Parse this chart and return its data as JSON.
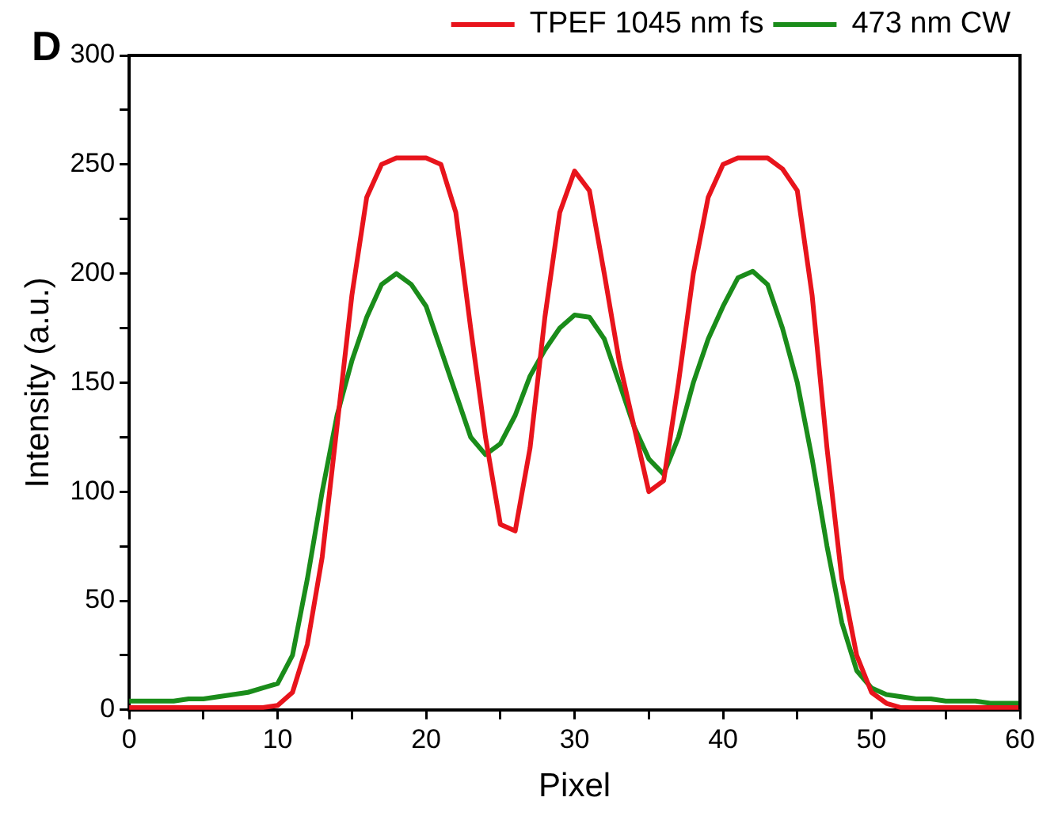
{
  "chart_data": {
    "type": "line",
    "xlabel": "Pixel",
    "ylabel": "Intensity (a.u.)",
    "annotations": [
      "D"
    ],
    "x": [
      0,
      1,
      2,
      3,
      4,
      5,
      6,
      7,
      8,
      9,
      10,
      11,
      12,
      13,
      14,
      15,
      16,
      17,
      18,
      19,
      20,
      21,
      22,
      23,
      24,
      25,
      26,
      27,
      28,
      29,
      30,
      31,
      32,
      33,
      34,
      35,
      36,
      37,
      38,
      39,
      40,
      41,
      42,
      43,
      44,
      45,
      46,
      47,
      48,
      49,
      50,
      51,
      52,
      53,
      54,
      55,
      56,
      57,
      58,
      59,
      60
    ],
    "series": [
      {
        "name": "TPEF 1045 nm fs",
        "color": "#e8141c",
        "values": [
          1,
          1,
          1,
          1,
          1,
          1,
          1,
          1,
          1,
          1,
          2,
          8,
          30,
          70,
          130,
          190,
          235,
          250,
          253,
          253,
          253,
          250,
          228,
          175,
          125,
          85,
          82,
          120,
          180,
          228,
          247,
          238,
          200,
          160,
          130,
          100,
          105,
          150,
          200,
          235,
          250,
          253,
          253,
          253,
          248,
          238,
          190,
          120,
          60,
          25,
          8,
          3,
          1,
          1,
          1,
          1,
          1,
          1,
          1,
          1,
          1
        ]
      },
      {
        "name": "473 nm CW",
        "color": "#1a8c1a",
        "values": [
          4,
          4,
          4,
          4,
          5,
          5,
          6,
          7,
          8,
          10,
          12,
          25,
          60,
          100,
          135,
          160,
          180,
          195,
          200,
          195,
          185,
          165,
          145,
          125,
          117,
          122,
          135,
          153,
          165,
          175,
          181,
          180,
          170,
          150,
          130,
          115,
          108,
          125,
          150,
          170,
          185,
          198,
          201,
          195,
          175,
          150,
          115,
          75,
          40,
          18,
          10,
          7,
          6,
          5,
          5,
          4,
          4,
          4,
          3,
          3,
          3
        ]
      }
    ],
    "xlim": [
      0,
      60
    ],
    "xticks": [
      0,
      {
        "value": 5,
        "label": null
      },
      10,
      {
        "value": 15,
        "label": null
      },
      20,
      {
        "value": 25,
        "label": null
      },
      30,
      {
        "value": 35,
        "label": null
      },
      40,
      {
        "value": 45,
        "label": null
      },
      50,
      {
        "value": 55,
        "label": null
      },
      60
    ],
    "ylim": [
      0,
      300
    ],
    "yticks": [
      0,
      {
        "value": 25,
        "label": null
      },
      50,
      {
        "value": 75,
        "label": null
      },
      100,
      {
        "value": 125,
        "label": null
      },
      150,
      {
        "value": 175,
        "label": null
      },
      200,
      {
        "value": 225,
        "label": null
      },
      250,
      {
        "value": 275,
        "label": null
      },
      300
    ],
    "grid": false,
    "legend": "top right",
    "marker": "none",
    "line_style": "solid"
  }
}
